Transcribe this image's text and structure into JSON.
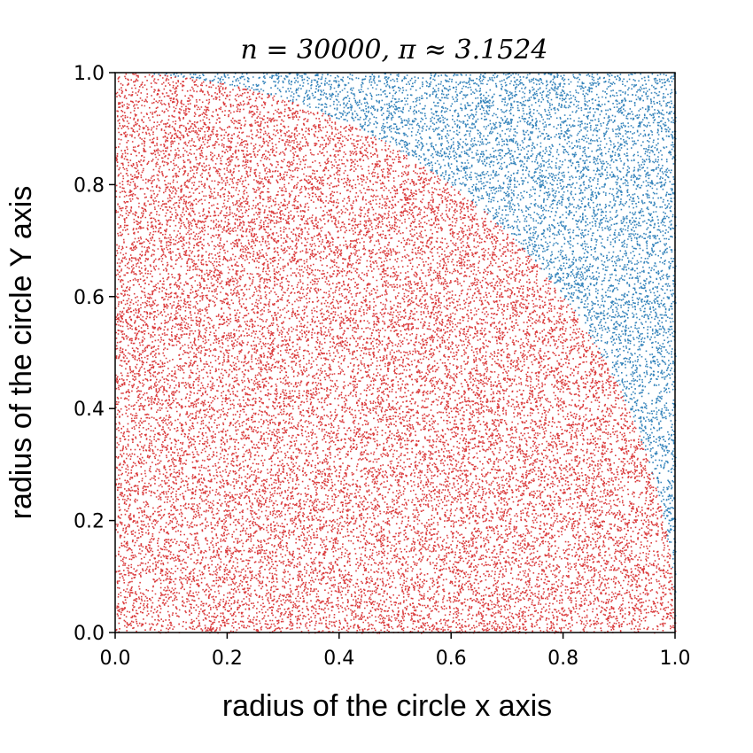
{
  "chart_data": {
    "type": "scatter",
    "title": "n = 30000, π ≈ 3.1524",
    "xlabel": "radius of the circle x axis",
    "ylabel": "radius of the circle Y axis",
    "xlim": [
      0.0,
      1.0
    ],
    "ylim": [
      0.0,
      1.0
    ],
    "x_ticks": [
      "0.0",
      "0.2",
      "0.4",
      "0.6",
      "0.8",
      "1.0"
    ],
    "y_ticks": [
      "0.0",
      "0.2",
      "0.4",
      "0.6",
      "0.8",
      "1.0"
    ],
    "grid": false,
    "n_points": 30000,
    "pi_estimate": 3.1524,
    "rule": "points with x^2 + y^2 <= 1 are inside the quarter circle",
    "series": [
      {
        "color": "#d62728",
        "region": "inside"
      },
      {
        "color": "#1f77b4",
        "region": "outside"
      }
    ]
  }
}
